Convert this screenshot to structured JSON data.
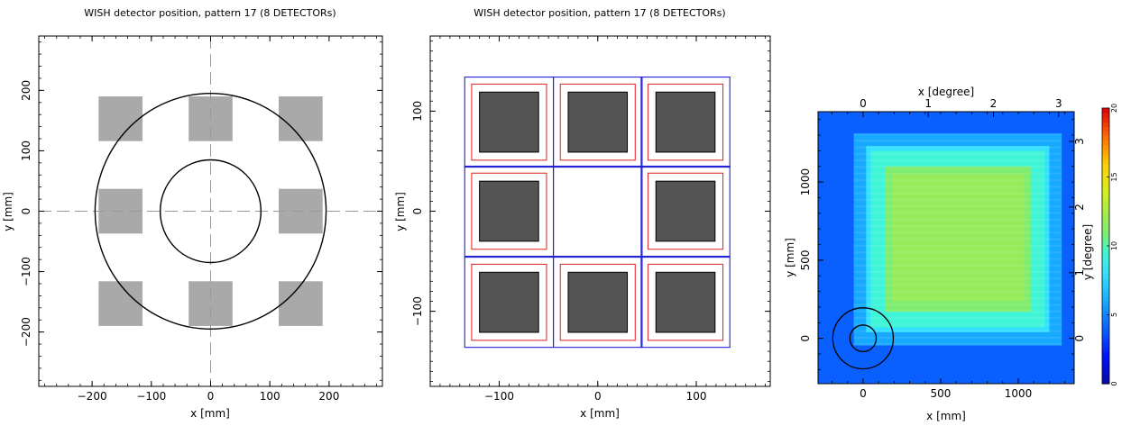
{
  "chart_data": [
    {
      "type": "scatter",
      "title": "WISH detector position, pattern 17 (8 DETECTORs)",
      "xlabel": "x [mm]",
      "ylabel": "y [mm]",
      "xlim": [
        -290,
        290
      ],
      "ylim": [
        -290,
        290
      ],
      "xticks": [
        -200,
        -100,
        0,
        100,
        200
      ],
      "yticks": [
        -200,
        -100,
        0,
        100,
        200
      ],
      "detector_color": "#a9a9a9",
      "detector_half_size_mm": 37,
      "detectors": [
        {
          "x": -152,
          "y": 153
        },
        {
          "x": 0,
          "y": 153
        },
        {
          "x": 152,
          "y": 153
        },
        {
          "x": -152,
          "y": 0
        },
        {
          "x": 152,
          "y": 0
        },
        {
          "x": -152,
          "y": -153
        },
        {
          "x": 0,
          "y": -153
        },
        {
          "x": 152,
          "y": -153
        }
      ],
      "circles": [
        {
          "cx": 0,
          "cy": 0,
          "r": 195
        },
        {
          "cx": 0,
          "cy": 0,
          "r": 85
        }
      ],
      "crosshair": "dashed"
    },
    {
      "type": "scatter",
      "title": "WISH detector position, pattern 17 (8 DETECTORs)",
      "xlabel": "x [mm]",
      "ylabel": "y [mm]",
      "xlim": [
        -170,
        175
      ],
      "ylim": [
        -175,
        175
      ],
      "xticks": [
        -100,
        0,
        100
      ],
      "yticks": [
        -100,
        0,
        100
      ],
      "colors": {
        "outer_frame": "#1f1fd6",
        "inner_frame": "#e23232",
        "detector": "#545454"
      },
      "cell_centers_x": [
        -90,
        0,
        89
      ],
      "cell_centers_y": [
        89,
        0,
        -91
      ],
      "cell_half_size": 45,
      "red_frame_half_size": 38,
      "detector_half_size": 30,
      "empty_cell": {
        "x": 0,
        "y": 0
      }
    },
    {
      "type": "heatmap",
      "xlabel": "x [mm]",
      "ylabel": "y [mm]",
      "top_xlabel": "x [degree]",
      "right_ylabel": "y [degree]",
      "xlim": [
        -290,
        1360
      ],
      "ylim": [
        -290,
        1450
      ],
      "xticks": [
        0,
        500,
        1000
      ],
      "yticks": [
        0,
        500,
        1000
      ],
      "top_xticks": [
        0,
        1,
        2,
        3
      ],
      "right_yticks": [
        0,
        1,
        2,
        3
      ],
      "degree_to_mm": 420,
      "colorbar": {
        "min": 0,
        "max": 20,
        "ticks": [
          0,
          5,
          10,
          15,
          20
        ]
      },
      "background_level": 4,
      "coverage_levels": [
        {
          "x": [
            -60,
            1280
          ],
          "y": [
            -45,
            1310
          ],
          "value": 6
        },
        {
          "x": [
            20,
            1200
          ],
          "y": [
            40,
            1230
          ],
          "value": 8
        },
        {
          "x": [
            50,
            1170
          ],
          "y": [
            70,
            1200
          ],
          "value": 9.5
        },
        {
          "x": [
            140,
            1080
          ],
          "y": [
            170,
            1100
          ],
          "value": 11
        },
        {
          "x": [
            190,
            1035
          ],
          "y": [
            240,
            1050
          ],
          "value": 12
        }
      ],
      "circles": [
        {
          "cx": 0,
          "cy": 0,
          "r": 195
        },
        {
          "cx": 0,
          "cy": 0,
          "r": 85
        }
      ]
    }
  ]
}
